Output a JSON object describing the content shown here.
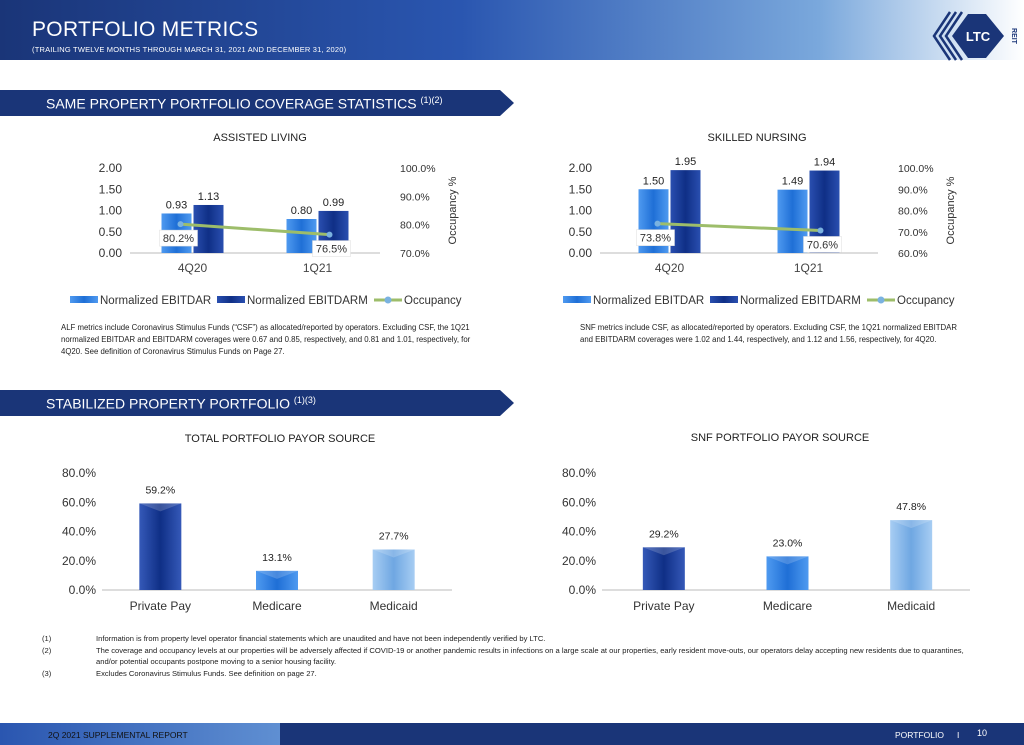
{
  "header": {
    "title": "PORTFOLIO METRICS",
    "subtitle": "(TRAILING TWELVE MONTHS THROUGH MARCH 31, 2021 AND DECEMBER 31, 2020)",
    "logo_text": "LTC",
    "logo_sub": "REIT"
  },
  "sections": {
    "coverage": {
      "label": "SAME PROPERTY PORTFOLIO COVERAGE STATISTICS",
      "sup": "(1)(2)"
    },
    "stabilized": {
      "label": "STABILIZED PROPERTY PORTFOLIO",
      "sup": "(1)(3)"
    }
  },
  "notes": {
    "alf": "ALF metrics include Coronavirus Stimulus Funds (“CSF”) as allocated/reported by operators. Excluding CSF, the 1Q21 normalized EBITDAR and EBITDARM coverages were 0.67 and 0.85, respectively, and 0.81 and 1.01, respectively, for 4Q20. See definition of Coronavirus Stimulus Funds on Page 27.",
    "snf": "SNF metrics include CSF, as allocated/reported by operators.  Excluding CSF, the 1Q21 normalized EBITDAR and EBITDARM coverages were 1.02 and 1.44, respectively, and 1.12 and 1.56, respectively, for 4Q20."
  },
  "footnotes": [
    {
      "num": "(1)",
      "text": "Information is from property level operator financial statements which are unaudited and have not been independently verified by LTC."
    },
    {
      "num": "(2)",
      "text": "The coverage and occupancy levels at our properties will be adversely affected if COVID-19 or another pandemic results in infections on a large scale at our properties, early resident move-outs, our operators delay accepting new residents due to quarantines, and/or potential occupants postpone moving to a senior housing facility."
    },
    {
      "num": "(3)",
      "text": "Excludes Coronavirus Stimulus Funds. See definition on page 27."
    }
  ],
  "footer": {
    "left": "2Q 2021 SUPPLEMENTAL REPORT",
    "right": "PORTFOLIO",
    "sep": "I",
    "page": "10"
  },
  "colors": {
    "ebitdar": "#1f6fd6",
    "ebitdarm": "#0f2f86",
    "occupancy": "#9dbd6a",
    "marker": "#7ab2e0",
    "private_pay": "#0f2f86",
    "medicare": "#1f6fd6",
    "medicaid": "#6fa7e2"
  },
  "chart_data": [
    {
      "type": "bar",
      "title": "ASSISTED LIVING",
      "categories": [
        "4Q20",
        "1Q21"
      ],
      "series": [
        {
          "name": "Normalized EBITDAR",
          "values": [
            0.93,
            0.8
          ]
        },
        {
          "name": "Normalized EBITDARM",
          "values": [
            1.13,
            0.99
          ]
        },
        {
          "name": "Occupancy",
          "values": [
            80.2,
            76.5
          ],
          "axis": "right",
          "kind": "line"
        }
      ],
      "data_labels": [
        [
          "0.93",
          "0.80"
        ],
        [
          "1.13",
          "0.99"
        ],
        [
          "80.2%",
          "76.5%"
        ]
      ],
      "ylim": [
        0,
        2
      ],
      "yticks": [
        "0.00",
        "0.50",
        "1.00",
        "1.50",
        "2.00"
      ],
      "y2lim": [
        70,
        100
      ],
      "y2ticks": [
        "70.0%",
        "80.0%",
        "90.0%",
        "100.0%"
      ],
      "y2label": "Occupancy %",
      "legend": "bottom"
    },
    {
      "type": "bar",
      "title": "SKILLED NURSING",
      "categories": [
        "4Q20",
        "1Q21"
      ],
      "series": [
        {
          "name": "Normalized EBITDAR",
          "values": [
            1.5,
            1.49
          ]
        },
        {
          "name": "Normalized EBITDARM",
          "values": [
            1.95,
            1.94
          ]
        },
        {
          "name": "Occupancy",
          "values": [
            73.8,
            70.6
          ],
          "axis": "right",
          "kind": "line"
        }
      ],
      "data_labels": [
        [
          "1.50",
          "1.49"
        ],
        [
          "1.95",
          "1.94"
        ],
        [
          "73.8%",
          "70.6%"
        ]
      ],
      "ylim": [
        0,
        2
      ],
      "yticks": [
        "0.00",
        "0.50",
        "1.00",
        "1.50",
        "2.00"
      ],
      "y2lim": [
        60,
        100
      ],
      "y2ticks": [
        "60.0%",
        "70.0%",
        "80.0%",
        "90.0%",
        "100.0%"
      ],
      "y2label": "Occupancy %",
      "legend": "bottom"
    },
    {
      "type": "bar",
      "title": "TOTAL PORTFOLIO PAYOR SOURCE",
      "categories": [
        "Private Pay",
        "Medicare",
        "Medicaid"
      ],
      "values": [
        59.2,
        13.1,
        27.7
      ],
      "data_labels": [
        "59.2%",
        "13.1%",
        "27.7%"
      ],
      "ylim": [
        0,
        80
      ],
      "yticks": [
        "0.0%",
        "20.0%",
        "40.0%",
        "60.0%",
        "80.0%"
      ]
    },
    {
      "type": "bar",
      "title": "SNF PORTFOLIO PAYOR SOURCE",
      "categories": [
        "Private Pay",
        "Medicare",
        "Medicaid"
      ],
      "values": [
        29.2,
        23.0,
        47.8
      ],
      "data_labels": [
        "29.2%",
        "23.0%",
        "47.8%"
      ],
      "ylim": [
        0,
        80
      ],
      "yticks": [
        "0.0%",
        "20.0%",
        "40.0%",
        "60.0%",
        "80.0%"
      ]
    }
  ]
}
